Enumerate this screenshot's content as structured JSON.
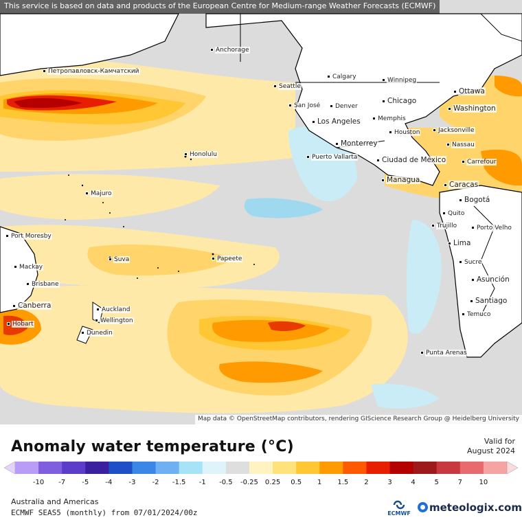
{
  "header": {
    "notice": "This service is based on data and products of the European Centre for Medium-range Weather Forecasts (ECMWF)",
    "attribution": "Map data © OpenStreetMap contributors, rendering GIScience Research Group @ Heidelberg University"
  },
  "map": {
    "cities": [
      {
        "name": "Anchorage"
      },
      {
        "name": "Петропавловск-Камчатский"
      },
      {
        "name": "Calgary"
      },
      {
        "name": "Winnipeg"
      },
      {
        "name": "Seattle"
      },
      {
        "name": "Ottawa"
      },
      {
        "name": "Chicago"
      },
      {
        "name": "Washington"
      },
      {
        "name": "San José"
      },
      {
        "name": "Denver"
      },
      {
        "name": "Memphis"
      },
      {
        "name": "Los Angeles"
      },
      {
        "name": "Houston"
      },
      {
        "name": "Jacksonville"
      },
      {
        "name": "Nassau"
      },
      {
        "name": "Honolulu"
      },
      {
        "name": "Monterrey"
      },
      {
        "name": "Puerto Vallarta"
      },
      {
        "name": "Ciudad de México"
      },
      {
        "name": "Carrefour"
      },
      {
        "name": "Managua"
      },
      {
        "name": "Caracas"
      },
      {
        "name": "Bogotá"
      },
      {
        "name": "Majuro"
      },
      {
        "name": "Quito"
      },
      {
        "name": "Trujillo"
      },
      {
        "name": "Porto Velho"
      },
      {
        "name": "Port Moresby"
      },
      {
        "name": "Lima"
      },
      {
        "name": "Suva"
      },
      {
        "name": "Papeete"
      },
      {
        "name": "Sucre"
      },
      {
        "name": "Mackay"
      },
      {
        "name": "Asunción"
      },
      {
        "name": "Brisbane"
      },
      {
        "name": "Santiago"
      },
      {
        "name": "Canberra"
      },
      {
        "name": "Auckland"
      },
      {
        "name": "Temuco"
      },
      {
        "name": "Wellington"
      },
      {
        "name": "Hobart"
      },
      {
        "name": "Dunedin"
      },
      {
        "name": "Punta Arenas"
      }
    ]
  },
  "legend": {
    "title": "Anomaly water temperature (°C)",
    "valid_label": "Valid for",
    "valid_date": "August 2024",
    "ticks": [
      "-10",
      "-7",
      "-5",
      "-4",
      "-3",
      "-2",
      "-1.5",
      "-1",
      "-0.5",
      "-0.25",
      "0.25",
      "0.5",
      "1",
      "1.5",
      "2",
      "3",
      "4",
      "5",
      "7",
      "10"
    ],
    "colors": [
      "#b89cf5",
      "#7f5ee0",
      "#5b3dc9",
      "#3a1f9e",
      "#1e4fc8",
      "#3b87e8",
      "#6fb0f2",
      "#a7e3f7",
      "#dff3fb",
      "#dedede",
      "#fff3c2",
      "#ffe27a",
      "#ffc733",
      "#ff9a00",
      "#ff5a00",
      "#e81e00",
      "#b50000",
      "#9e1a1a",
      "#c7393e",
      "#e86a6f",
      "#f5a3a3"
    ],
    "arrow_low_color": "#e4d4fb",
    "arrow_high_color": "#fbdada"
  },
  "footer": {
    "region": "Australia and Americas",
    "model": "ECMWF SEAS5 (monthly) from 07/01/2024/00z",
    "ecmwf_logo_text": "ECMWF",
    "brand": "meteologix.com"
  },
  "colors": {
    "ocean_neutral": "#dcdcdc",
    "warm_light": "#ffe9a8",
    "warm_mid": "#ffd56b",
    "warm_strong": "#ff9d1a",
    "hot": "#e83a00",
    "very_hot": "#a80000",
    "cool_light": "#c9ecf7",
    "cool_mid": "#9fd9f0",
    "land": "#ffffff"
  }
}
